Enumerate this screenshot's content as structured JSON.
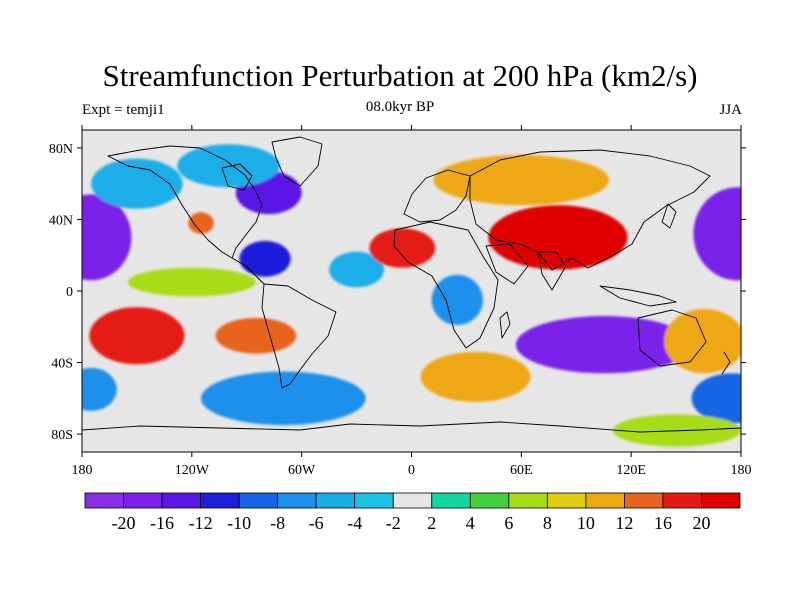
{
  "chart_data": {
    "type": "heatmap",
    "title": "Streamfunction Perturbation at 200 hPa (km2/s)",
    "left_label": "Expt = temji1",
    "center_label": "08.0kyr BP",
    "right_label": "JJA",
    "x_ticks": [
      {
        "value": -180,
        "label": "180"
      },
      {
        "value": -120,
        "label": "120W"
      },
      {
        "value": -60,
        "label": "60W"
      },
      {
        "value": 0,
        "label": "0"
      },
      {
        "value": 60,
        "label": "60E"
      },
      {
        "value": 120,
        "label": "120E"
      },
      {
        "value": 180,
        "label": "180"
      }
    ],
    "y_ticks": [
      {
        "value": 80,
        "label": "80N"
      },
      {
        "value": 40,
        "label": "40N"
      },
      {
        "value": 0,
        "label": "0"
      },
      {
        "value": -40,
        "label": "40S"
      },
      {
        "value": -80,
        "label": "80S"
      }
    ],
    "xlim": [
      -180,
      180
    ],
    "ylim": [
      -90,
      90
    ],
    "colorbar": {
      "levels": [
        "-20",
        "-16",
        "-12",
        "-10",
        "-8",
        "-6",
        "-4",
        "-2",
        "2",
        "4",
        "6",
        "8",
        "10",
        "12",
        "16",
        "20"
      ],
      "colors": [
        "#8a2ee6",
        "#7a20ea",
        "#5a18e6",
        "#1f1fdb",
        "#1466e6",
        "#1e90ec",
        "#1aaee8",
        "#1ec2e6",
        "#e6e6e6",
        "#12d7a0",
        "#44d23c",
        "#a8dc16",
        "#e0cf10",
        "#eea812",
        "#e8641c",
        "#e51a12",
        "#e00000"
      ]
    },
    "blobs": [
      {
        "lon": -175,
        "lat": 30,
        "value": -20,
        "rlon": 22,
        "rlat": 24
      },
      {
        "lon": 178,
        "lat": 32,
        "value": -20,
        "rlon": 24,
        "rlat": 26
      },
      {
        "lon": -78,
        "lat": 55,
        "value": -14,
        "rlon": 18,
        "rlat": 12
      },
      {
        "lon": -80,
        "lat": 18,
        "value": -12,
        "rlon": 14,
        "rlat": 10
      },
      {
        "lon": -100,
        "lat": 70,
        "value": -6,
        "rlon": 28,
        "rlat": 12
      },
      {
        "lon": -115,
        "lat": 38,
        "value": 14,
        "rlon": 7,
        "rlat": 6
      },
      {
        "lon": -30,
        "lat": 12,
        "value": -5,
        "rlon": 15,
        "rlat": 10
      },
      {
        "lon": -5,
        "lat": 24,
        "value": 16,
        "rlon": 18,
        "rlat": 11
      },
      {
        "lon": 80,
        "lat": 30,
        "value": 22,
        "rlon": 38,
        "rlat": 18
      },
      {
        "lon": 60,
        "lat": 62,
        "value": 10,
        "rlon": 48,
        "rlat": 14
      },
      {
        "lon": 105,
        "lat": -30,
        "value": -20,
        "rlon": 48,
        "rlat": 16
      },
      {
        "lon": 25,
        "lat": -5,
        "value": -8,
        "rlon": 14,
        "rlat": 14
      },
      {
        "lon": -150,
        "lat": -25,
        "value": 18,
        "rlon": 26,
        "rlat": 16
      },
      {
        "lon": -85,
        "lat": -25,
        "value": 12,
        "rlon": 22,
        "rlat": 10
      },
      {
        "lon": -70,
        "lat": -60,
        "value": -8,
        "rlon": 45,
        "rlat": 15
      },
      {
        "lon": 35,
        "lat": -48,
        "value": 10,
        "rlon": 30,
        "rlat": 14
      },
      {
        "lon": 160,
        "lat": -28,
        "value": 10,
        "rlon": 22,
        "rlat": 18
      },
      {
        "lon": 175,
        "lat": -60,
        "value": -10,
        "rlon": 22,
        "rlat": 14
      },
      {
        "lon": -175,
        "lat": -55,
        "value": -8,
        "rlon": 14,
        "rlat": 12
      },
      {
        "lon": 145,
        "lat": -78,
        "value": 6,
        "rlon": 35,
        "rlat": 9
      },
      {
        "lon": -150,
        "lat": 60,
        "value": -5,
        "rlon": 25,
        "rlat": 14
      },
      {
        "lon": -120,
        "lat": 5,
        "value": 6,
        "rlon": 35,
        "rlat": 8
      }
    ]
  }
}
